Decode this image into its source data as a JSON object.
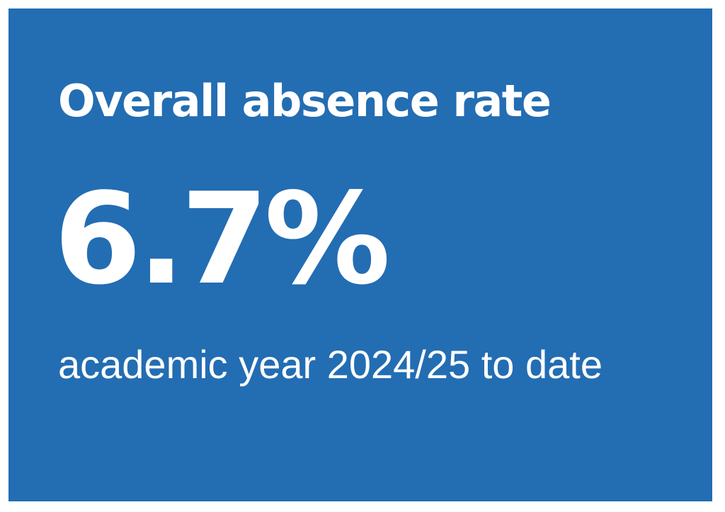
{
  "tile": {
    "heading": "Overall absence rate",
    "value": "6.7%",
    "caption": "academic year 2024/25 to date",
    "background_color": "#236db3",
    "text_color": "#ffffff"
  }
}
